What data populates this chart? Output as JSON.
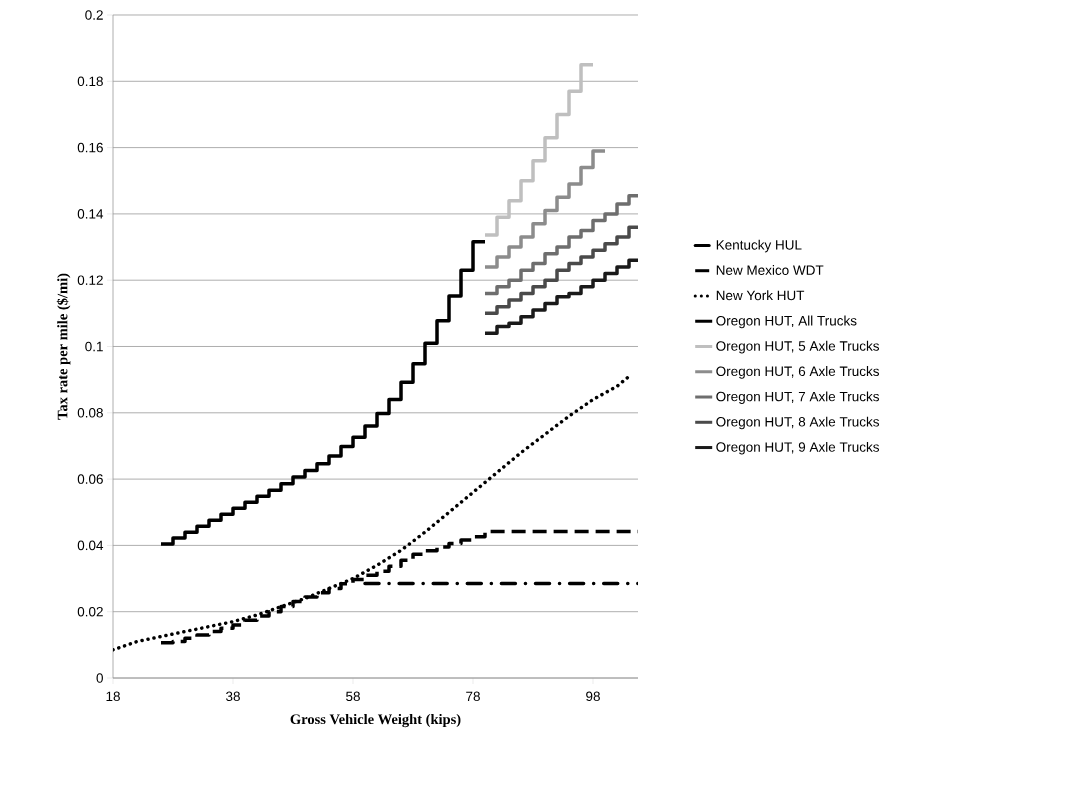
{
  "chart_data": {
    "type": "line",
    "xlabel": "Gross Vehicle Weight (kips)",
    "ylabel": "Tax rate per mile ($/mi)",
    "xlim": [
      18,
      105.5
    ],
    "ylim": [
      0,
      0.2
    ],
    "xticks": [
      18,
      38,
      58,
      78,
      98
    ],
    "yticks": [
      0,
      0.02,
      0.04,
      0.06,
      0.08,
      0.1,
      0.12,
      0.14,
      0.16,
      0.18,
      0.2
    ],
    "grid": "y",
    "legend": "right",
    "series": [
      {
        "name": "Kentucky HUL",
        "color": "#000000",
        "line_style": "dashdot",
        "x": [
          60,
          105.5
        ],
        "values": [
          0.0285,
          0.0285
        ]
      },
      {
        "name": "New Mexico WDT",
        "color": "#000000",
        "type": "step",
        "line_style": "dashed",
        "x": [
          26,
          28,
          30,
          32,
          34,
          36,
          38,
          40,
          42,
          44,
          46,
          48,
          50,
          52,
          54,
          56,
          58,
          60,
          62,
          64,
          66,
          68,
          70,
          72,
          74,
          76,
          78,
          80,
          105.5
        ],
        "values": [
          0.0106,
          0.011,
          0.012,
          0.013,
          0.014,
          0.015,
          0.016,
          0.0174,
          0.0187,
          0.02,
          0.0216,
          0.0231,
          0.0244,
          0.0257,
          0.027,
          0.0284,
          0.0297,
          0.031,
          0.0322,
          0.0337,
          0.0355,
          0.0373,
          0.0384,
          0.0395,
          0.0406,
          0.0416,
          0.0426,
          0.0442,
          0.0442
        ]
      },
      {
        "name": "New York HUT",
        "color": "#000000",
        "line_style": "dotted",
        "x": [
          18,
          22,
          26,
          30,
          34,
          38,
          42,
          46,
          50,
          54,
          58,
          62,
          66,
          70,
          74,
          78,
          82,
          86,
          90,
          94,
          98,
          102,
          104
        ],
        "values": [
          0.0085,
          0.011,
          0.0125,
          0.014,
          0.0155,
          0.017,
          0.019,
          0.0215,
          0.024,
          0.027,
          0.03,
          0.034,
          0.0385,
          0.044,
          0.05,
          0.056,
          0.062,
          0.068,
          0.0735,
          0.079,
          0.084,
          0.088,
          0.091
        ]
      },
      {
        "name": "Oregon HUT, All Trucks",
        "color": "#000000",
        "type": "step",
        "line_style": "solid",
        "x": [
          26,
          28,
          30,
          32,
          34,
          36,
          38,
          40,
          42,
          44,
          46,
          48,
          50,
          52,
          54,
          56,
          58,
          60,
          62,
          64,
          66,
          68,
          70,
          72,
          74,
          76,
          78,
          80
        ],
        "values": [
          0.0404,
          0.0422,
          0.044,
          0.0458,
          0.0476,
          0.0494,
          0.0512,
          0.053,
          0.0548,
          0.0566,
          0.0586,
          0.0606,
          0.0626,
          0.0646,
          0.067,
          0.0698,
          0.0726,
          0.076,
          0.0798,
          0.084,
          0.0892,
          0.0948,
          0.101,
          0.1078,
          0.1152,
          0.123,
          0.1316,
          0.1316
        ]
      },
      {
        "name": "Oregon HUT, 5 Axle Trucks",
        "color": "#bfbfbf",
        "type": "step",
        "line_style": "solid",
        "x": [
          80,
          82,
          84,
          86,
          88,
          90,
          92,
          94,
          96,
          98
        ],
        "values": [
          0.1336,
          0.139,
          0.144,
          0.15,
          0.156,
          0.163,
          0.17,
          0.177,
          0.185,
          0.185
        ]
      },
      {
        "name": "Oregon HUT, 6 Axle Trucks",
        "color": "#8c8c8c",
        "type": "step",
        "line_style": "solid",
        "x": [
          80,
          82,
          84,
          86,
          88,
          90,
          92,
          94,
          96,
          98,
          100
        ],
        "values": [
          0.124,
          0.127,
          0.13,
          0.133,
          0.137,
          0.141,
          0.145,
          0.149,
          0.154,
          0.159,
          0.159
        ]
      },
      {
        "name": "Oregon HUT, 7 Axle Trucks",
        "color": "#6e6e6e",
        "type": "step",
        "line_style": "solid",
        "x": [
          80,
          82,
          84,
          86,
          88,
          90,
          92,
          94,
          96,
          98,
          100,
          102,
          104,
          105.5
        ],
        "values": [
          0.116,
          0.118,
          0.12,
          0.123,
          0.125,
          0.128,
          0.13,
          0.133,
          0.135,
          0.138,
          0.14,
          0.143,
          0.1455,
          0.1455
        ]
      },
      {
        "name": "Oregon HUT, 8 Axle Trucks",
        "color": "#4a4a4a",
        "type": "step",
        "line_style": "solid",
        "x": [
          80,
          82,
          84,
          86,
          88,
          90,
          92,
          94,
          96,
          98,
          100,
          102,
          104,
          105.5
        ],
        "values": [
          0.11,
          0.112,
          0.114,
          0.116,
          0.118,
          0.12,
          0.123,
          0.125,
          0.127,
          0.129,
          0.131,
          0.133,
          0.136,
          0.136
        ]
      },
      {
        "name": "Oregon HUT, 9 Axle Trucks",
        "color": "#1a1a1a",
        "type": "step",
        "line_style": "solid",
        "x": [
          80,
          82,
          84,
          86,
          88,
          90,
          92,
          94,
          96,
          98,
          100,
          102,
          104,
          105.5
        ],
        "values": [
          0.104,
          0.106,
          0.107,
          0.109,
          0.111,
          0.113,
          0.115,
          0.116,
          0.118,
          0.12,
          0.122,
          0.124,
          0.126,
          0.126
        ]
      }
    ]
  }
}
